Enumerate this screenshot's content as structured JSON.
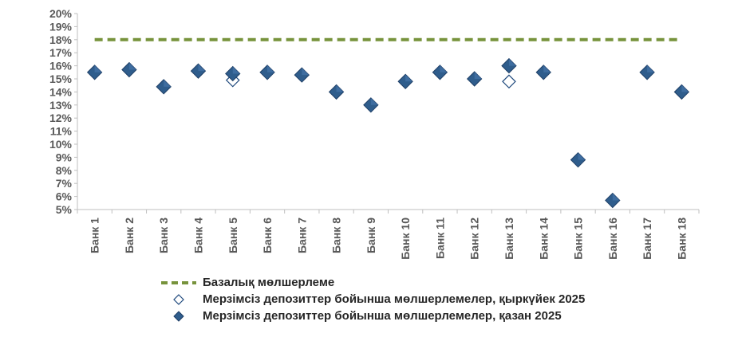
{
  "chart_data": {
    "type": "scatter",
    "title": "",
    "xlabel": "",
    "ylabel": "",
    "categories": [
      "Банк 1",
      "Банк 2",
      "Банк 3",
      "Банк 4",
      "Банк 5",
      "Банк 6",
      "Банк 7",
      "Банк 8",
      "Банк 9",
      "Банк 10",
      "Банк 11",
      "Банк 12",
      "Банк 13",
      "Банк 14",
      "Банк 15",
      "Банк 16",
      "Банк 17",
      "Банк 18"
    ],
    "ylim": [
      5,
      20
    ],
    "yticks": [
      5,
      6,
      7,
      8,
      9,
      10,
      11,
      12,
      13,
      14,
      15,
      16,
      17,
      18,
      19,
      20
    ],
    "y_tick_labels": [
      "5%",
      "6%",
      "7%",
      "8%",
      "9%",
      "10%",
      "11%",
      "12%",
      "13%",
      "14%",
      "15%",
      "16%",
      "17%",
      "18%",
      "19%",
      "20%"
    ],
    "grid": false,
    "legend_position": "bottom",
    "series": [
      {
        "name": "Базалық мөлшерлеме",
        "kind": "dashed-line",
        "color": "#77933C",
        "values": [
          18,
          18,
          18,
          18,
          18,
          18,
          18,
          18,
          18,
          18,
          18,
          18,
          18,
          18,
          18,
          18,
          18,
          18
        ]
      },
      {
        "name": "Мерзімсіз депозиттер бойынша мөлшерлемелер, қыркүйек 2025",
        "kind": "hollow-diamond",
        "color": "#1F497D",
        "values": [
          15.5,
          15.7,
          14.4,
          15.6,
          14.9,
          15.5,
          15.3,
          14.0,
          13.0,
          14.8,
          15.5,
          15.0,
          14.8,
          15.5,
          8.8,
          5.7,
          15.5,
          14.0
        ]
      },
      {
        "name": "Мерзімсіз депозиттер бойынша мөлшерлемелер, қазан 2025",
        "kind": "filled-diamond",
        "color": "#2F5D8C",
        "values": [
          15.5,
          15.7,
          14.4,
          15.6,
          15.4,
          15.5,
          15.3,
          14.0,
          13.0,
          14.8,
          15.5,
          15.0,
          16.0,
          15.5,
          8.8,
          5.7,
          15.5,
          14.0
        ]
      }
    ]
  }
}
